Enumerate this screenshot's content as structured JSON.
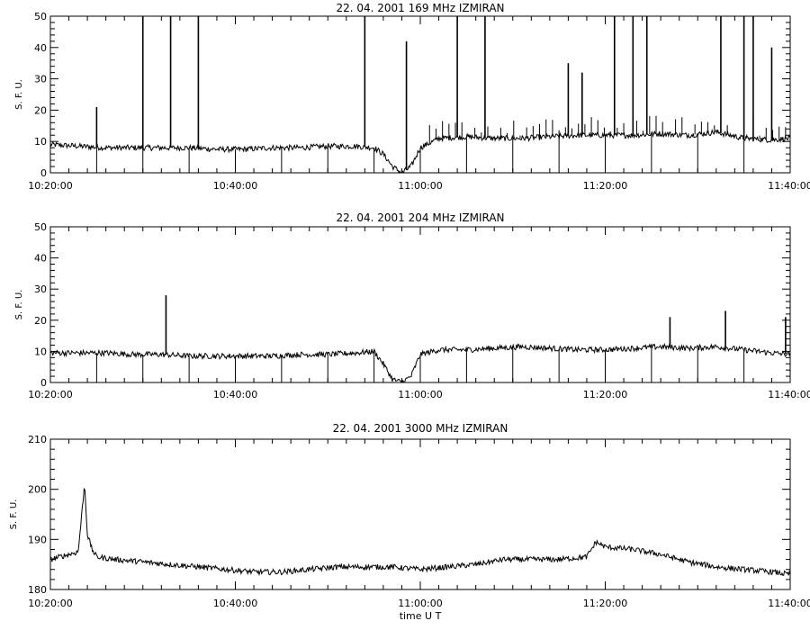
{
  "chart_data": [
    {
      "type": "line",
      "title": "22. 04. 2001   169 MHz   IZMIRAN",
      "ylabel": "S. F. U.",
      "xlabel": "",
      "xlim": [
        620,
        700
      ],
      "ylim": [
        0,
        50
      ],
      "y_ticks": [
        0,
        10,
        20,
        30,
        40,
        50
      ],
      "x_ticks": [
        "10:20:00",
        "10:40:00",
        "11:00:00",
        "11:20:00",
        "11:40:00"
      ],
      "x_tick_values": [
        620,
        640,
        660,
        680,
        700
      ],
      "grid": false,
      "series": [
        {
          "x": [
            620,
            623,
            626,
            629,
            632,
            635,
            638,
            641,
            644,
            647,
            650,
            653,
            655,
            656,
            657,
            658,
            659,
            660,
            662,
            665,
            668,
            671,
            674,
            677,
            680,
            683,
            686,
            689,
            692,
            695,
            698,
            700
          ],
          "y": [
            9,
            8.5,
            8,
            8,
            8,
            8,
            7.5,
            7.5,
            8,
            8,
            8.5,
            8.5,
            8,
            6,
            2,
            0,
            2,
            8,
            11,
            11.5,
            11,
            11,
            11.5,
            12,
            12,
            12,
            12.5,
            12,
            13,
            11,
            10.5,
            11
          ]
        }
      ],
      "spikes": [
        {
          "x": 625.0,
          "y": 21
        },
        {
          "x": 630.0,
          "y": 50
        },
        {
          "x": 633.0,
          "y": 50
        },
        {
          "x": 636.0,
          "y": 50
        },
        {
          "x": 654.0,
          "y": 50
        },
        {
          "x": 658.5,
          "y": 42
        },
        {
          "x": 664.0,
          "y": 50
        },
        {
          "x": 667.0,
          "y": 50
        },
        {
          "x": 676.0,
          "y": 35
        },
        {
          "x": 677.5,
          "y": 32
        },
        {
          "x": 681.0,
          "y": 50
        },
        {
          "x": 683.0,
          "y": 50
        },
        {
          "x": 684.5,
          "y": 50
        },
        {
          "x": 692.5,
          "y": 50
        },
        {
          "x": 695.0,
          "y": 50
        },
        {
          "x": 696.0,
          "y": 50
        },
        {
          "x": 698.0,
          "y": 40
        }
      ]
    },
    {
      "type": "line",
      "title": "22. 04. 2001   204 MHz   IZMIRAN",
      "ylabel": "S. F. U.",
      "xlabel": "",
      "xlim": [
        620,
        700
      ],
      "ylim": [
        0,
        50
      ],
      "y_ticks": [
        0,
        10,
        20,
        30,
        40,
        50
      ],
      "x_ticks": [
        "10:20:00",
        "10:40:00",
        "11:00:00",
        "11:20:00",
        "11:40:00"
      ],
      "x_tick_values": [
        620,
        640,
        660,
        680,
        700
      ],
      "grid": false,
      "series": [
        {
          "x": [
            620,
            623,
            626,
            629,
            632,
            635,
            638,
            641,
            644,
            647,
            650,
            653,
            655,
            656,
            657,
            658,
            659,
            660,
            662,
            665,
            668,
            671,
            674,
            677,
            680,
            683,
            686,
            689,
            692,
            695,
            698,
            700
          ],
          "y": [
            9.5,
            9.5,
            9.5,
            9,
            9,
            8.5,
            8.5,
            8.5,
            8.5,
            9,
            9,
            9.5,
            10,
            6,
            1,
            0,
            2,
            9,
            10.5,
            10.5,
            11,
            11.5,
            11,
            10.5,
            10.5,
            11,
            11.5,
            11,
            11.5,
            10.5,
            9.5,
            9
          ]
        }
      ],
      "spikes": [
        {
          "x": 632.5,
          "y": 28
        },
        {
          "x": 687.0,
          "y": 21
        },
        {
          "x": 693.0,
          "y": 23
        },
        {
          "x": 699.5,
          "y": 21
        }
      ]
    },
    {
      "type": "line",
      "title": "22. 04. 2001   3000 MHz   IZMIRAN",
      "ylabel": "S. F. U.",
      "xlabel": "time  U T",
      "xlim": [
        620,
        700
      ],
      "ylim": [
        180,
        210
      ],
      "y_ticks": [
        180,
        190,
        200,
        210
      ],
      "x_ticks": [
        "10:20:00",
        "10:40:00",
        "11:00:00",
        "11:20:00",
        "11:40:00"
      ],
      "x_tick_values": [
        620,
        640,
        660,
        680,
        700
      ],
      "grid": false,
      "series": [
        {
          "x": [
            620,
            621,
            622,
            623,
            623.7,
            624,
            624.5,
            625,
            627,
            630,
            633,
            636,
            639,
            642,
            645,
            648,
            651,
            654,
            657,
            660,
            663,
            666,
            669,
            672,
            675,
            678,
            679,
            680,
            683,
            686,
            689,
            692,
            695,
            698,
            700
          ],
          "y": [
            186,
            186.5,
            187,
            187.5,
            201,
            191,
            188,
            186.5,
            186,
            185.5,
            185,
            184.5,
            184,
            183.5,
            183.5,
            184,
            184.5,
            184.5,
            184.5,
            184,
            184.5,
            185,
            186,
            186,
            186,
            186.5,
            189.5,
            188.5,
            188,
            187,
            185.5,
            184.5,
            184,
            183.5,
            183
          ]
        }
      ],
      "spikes": []
    }
  ]
}
